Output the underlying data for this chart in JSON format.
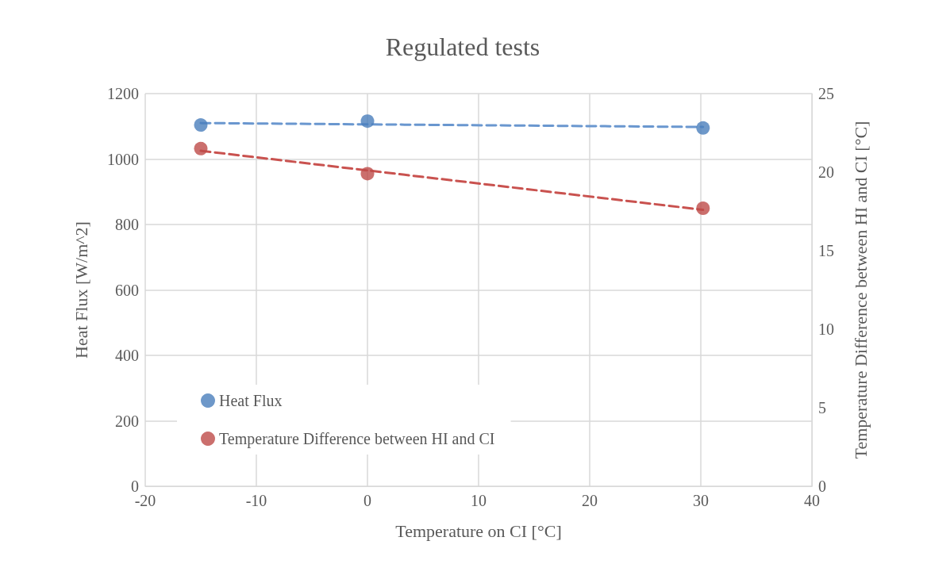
{
  "chart_data": {
    "type": "scatter",
    "title": "Regulated tests",
    "xlabel": "Temperature on CI [°C]",
    "ylabel": "Heat Flux [W/m^2]",
    "y2label": "Temperature Difference between HI and CI [°C]",
    "x": [
      -15,
      0,
      30.2
    ],
    "series": [
      {
        "name": "Heat Flux",
        "color": "#4a7ebb",
        "values": [
          1104,
          1116,
          1095
        ],
        "marker": "circle"
      },
      {
        "name": "Temperature Difference between HI and CI",
        "color": "#be4b48",
        "values": [
          21.5,
          19.9,
          17.7
        ],
        "axis": "y2",
        "marker": "circle"
      },
      {
        "type": "line",
        "color": "#6a97cf",
        "values": [
          1110,
          1106,
          1098
        ],
        "line_style": "dashed",
        "marker": "none"
      },
      {
        "type": "line",
        "color": "#c9524f",
        "values": [
          21.36,
          20.11,
          17.6
        ],
        "axis": "y2",
        "line_style": "dashed",
        "marker": "none"
      }
    ],
    "xlim": [
      -20,
      40
    ],
    "xticks": [
      -20,
      -10,
      0,
      10,
      20,
      30,
      40
    ],
    "ylim": [
      0,
      1200
    ],
    "yticks": [
      0,
      200,
      400,
      600,
      800,
      1000,
      1200
    ],
    "y2lim": [
      0,
      25
    ],
    "y2ticks": [
      0,
      5,
      10,
      15,
      20,
      25
    ],
    "grid": true,
    "legend": "bottom left"
  }
}
